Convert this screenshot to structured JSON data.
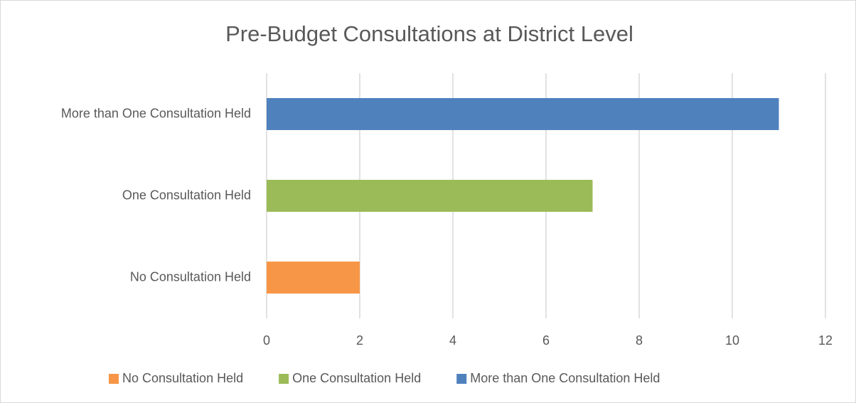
{
  "chart_data": {
    "type": "bar",
    "orientation": "horizontal",
    "title": "Pre-Budget Consultations at District Level",
    "categories": [
      "No Consultation Held",
      "One Consultation Held",
      "More than One Consultation Held"
    ],
    "series": [
      {
        "name": "No Consultation Held",
        "color": "#f79646",
        "values": [
          2,
          null,
          null
        ]
      },
      {
        "name": "One Consultation Held",
        "color": "#9bbb59",
        "values": [
          null,
          7,
          null
        ]
      },
      {
        "name": "More than One Consultation Held",
        "color": "#4f81bd",
        "values": [
          null,
          null,
          11
        ]
      }
    ],
    "xlim": [
      0,
      12
    ],
    "xticks": [
      0,
      2,
      4,
      6,
      8,
      10,
      12
    ],
    "grid": true,
    "legend": "bottom"
  }
}
